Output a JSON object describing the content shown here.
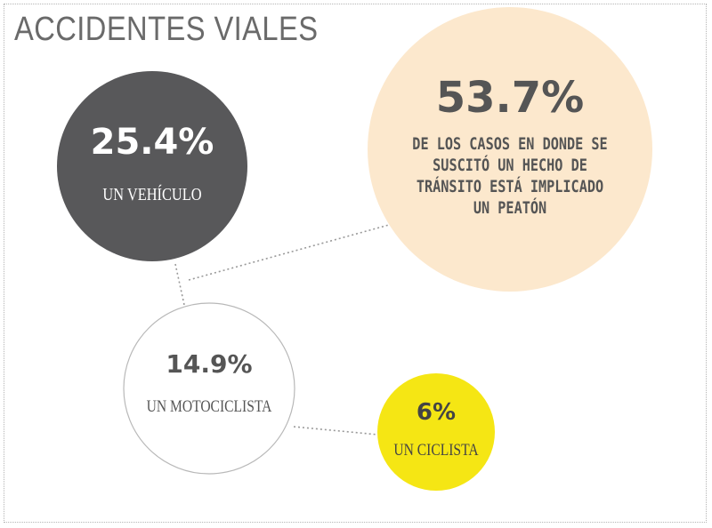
{
  "title": "ACCIDENTES VIALES",
  "chart_data": {
    "type": "bubble",
    "title": "ACCIDENTES VIALES",
    "items": [
      {
        "value": 25.4,
        "display": "25.4%",
        "label_lines": [
          "UN VEHÍCULO"
        ],
        "fill": "#58585a",
        "stroke": "none",
        "text_color": "#ffffff",
        "label_style": "serif"
      },
      {
        "value": 53.7,
        "display": "53.7%",
        "label_lines": [
          "DE LOS CASOS EN DONDE SE",
          "SUSCITÓ UN HECHO DE",
          "TRÁNSITO ESTÁ IMPLICADO",
          "UN PEATÓN"
        ],
        "fill": "#fce8cd",
        "stroke": "none",
        "text_color": "#555555",
        "label_style": "mono"
      },
      {
        "value": 14.9,
        "display": "14.9%",
        "label_lines": [
          "UN MOTOCICLISTA"
        ],
        "fill": "#ffffff",
        "stroke": "#b8b8b8",
        "text_color": "#555555",
        "label_style": "serif"
      },
      {
        "value": 6,
        "display": "6%",
        "label_lines": [
          "UN CICLISTA"
        ],
        "fill": "#f5e614",
        "stroke": "none",
        "text_color": "#444444",
        "label_style": "serif"
      }
    ],
    "connector_color": "#999999"
  }
}
